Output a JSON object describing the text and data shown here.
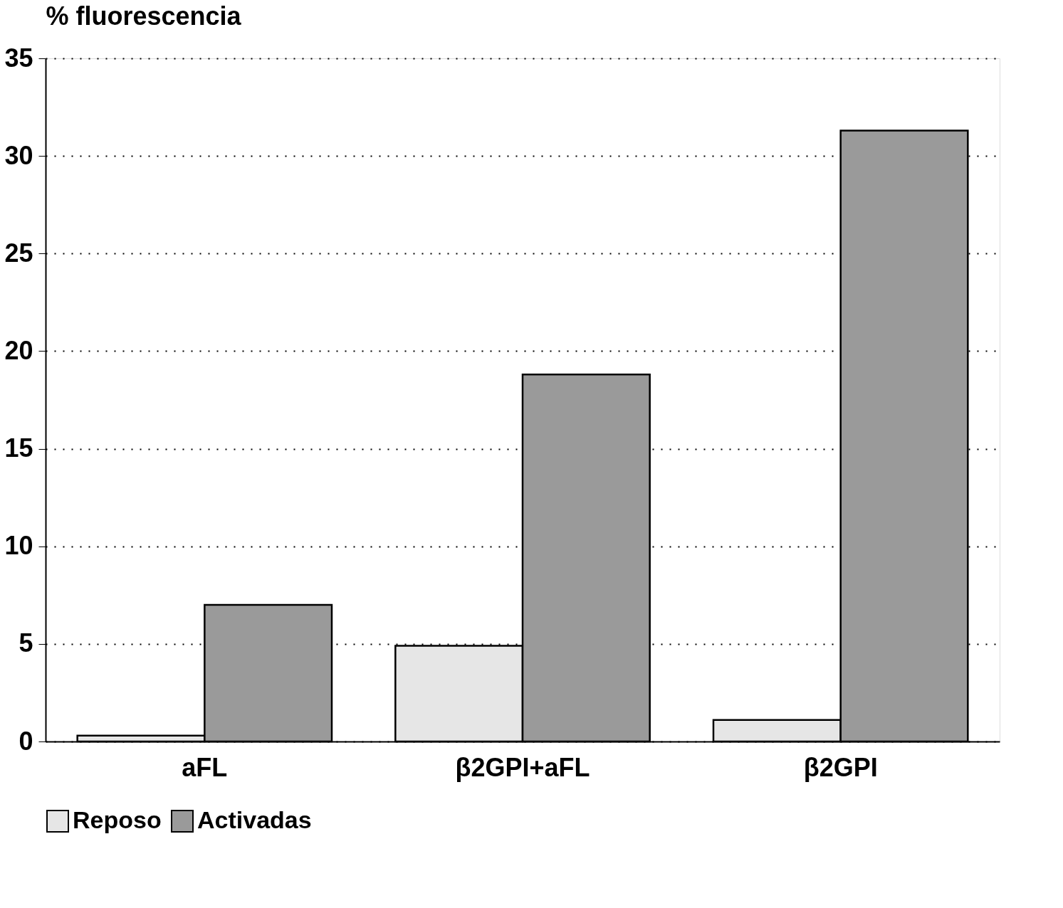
{
  "chart_data": {
    "type": "bar",
    "ylabel": "% fluorescencia",
    "categories": [
      "aFL",
      "β2GPI+aFL",
      "β2GPI"
    ],
    "series": [
      {
        "name": "Reposo",
        "color": "#e6e6e6",
        "values": [
          0.3,
          4.9,
          1.1
        ]
      },
      {
        "name": "Activadas",
        "color": "#9a9a9a",
        "values": [
          7.0,
          18.8,
          31.3
        ]
      }
    ],
    "ylim": [
      0,
      35
    ],
    "yticks": [
      0,
      5,
      10,
      15,
      20,
      25,
      30,
      35
    ],
    "grid": "y",
    "legend": "bottom"
  }
}
